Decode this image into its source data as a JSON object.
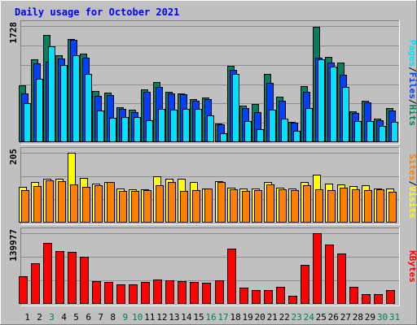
{
  "title": "Daily usage for October 2021",
  "colors": {
    "background": "#c0c0c0",
    "title": "#0000ff",
    "hits": "#00805c",
    "files": "#0040ff",
    "pages": "#00e0ff",
    "visits": "#ffff00",
    "sites": "#ff8000",
    "kbytes": "#ff0000",
    "weekend_label": "#00805c",
    "weekday_label": "#000000"
  },
  "chart_data": [
    {
      "type": "bar",
      "title": "Daily usage for October 2021",
      "max_label": "1728",
      "ylim": [
        0,
        1728
      ],
      "legend": [
        {
          "label": "Pages",
          "color": "#00e0ff"
        },
        {
          "label": "/",
          "color": "#000000"
        },
        {
          "label": "Files",
          "color": "#0040ff"
        },
        {
          "label": "/",
          "color": "#000000"
        },
        {
          "label": "Hits",
          "color": "#00805c"
        }
      ],
      "categories": [
        "1",
        "2",
        "3",
        "4",
        "5",
        "6",
        "7",
        "8",
        "9",
        "10",
        "11",
        "12",
        "13",
        "14",
        "15",
        "16",
        "17",
        "18",
        "19",
        "20",
        "21",
        "22",
        "23",
        "24",
        "25",
        "26",
        "27",
        "28",
        "29",
        "30",
        "31"
      ],
      "series": [
        {
          "name": "Hits",
          "color": "#00805c",
          "values": [
            840,
            1230,
            1600,
            1290,
            1540,
            1320,
            760,
            740,
            520,
            480,
            780,
            900,
            750,
            730,
            640,
            660,
            280,
            1130,
            540,
            570,
            1020,
            680,
            300,
            830,
            1720,
            1270,
            1190,
            460,
            620,
            350,
            510
          ]
        },
        {
          "name": "Files",
          "color": "#0040ff",
          "values": [
            720,
            1170,
            1200,
            1240,
            1520,
            1260,
            690,
            700,
            500,
            450,
            750,
            820,
            720,
            710,
            620,
            640,
            270,
            1080,
            510,
            450,
            880,
            620,
            290,
            750,
            1260,
            1180,
            1000,
            440,
            590,
            330,
            470
          ]
        },
        {
          "name": "Pages",
          "color": "#00e0ff",
          "values": [
            580,
            940,
            1420,
            1150,
            1290,
            1020,
            470,
            360,
            370,
            380,
            330,
            500,
            480,
            490,
            490,
            400,
            130,
            1020,
            320,
            190,
            480,
            350,
            170,
            510,
            1230,
            1120,
            820,
            310,
            320,
            240,
            300
          ]
        }
      ]
    },
    {
      "type": "bar",
      "max_label": "205",
      "ylim": [
        0,
        205
      ],
      "legend": [
        {
          "label": "Sites",
          "color": "#ff8000"
        },
        {
          "label": "/",
          "color": "#000000"
        },
        {
          "label": "Visits",
          "color": "#ffff00"
        }
      ],
      "categories": [
        "1",
        "2",
        "3",
        "4",
        "5",
        "6",
        "7",
        "8",
        "9",
        "10",
        "11",
        "12",
        "13",
        "14",
        "15",
        "16",
        "17",
        "18",
        "19",
        "20",
        "21",
        "22",
        "23",
        "24",
        "25",
        "26",
        "27",
        "28",
        "29",
        "30",
        "31"
      ],
      "series": [
        {
          "name": "Visits",
          "color": "#ffff00",
          "values": [
            105,
            118,
            128,
            128,
            205,
            130,
            115,
            118,
            100,
            98,
            98,
            135,
            128,
            128,
            120,
            100,
            122,
            103,
            100,
            100,
            118,
            103,
            100,
            118,
            140,
            115,
            112,
            108,
            110,
            100,
            100
          ]
        },
        {
          "name": "Sites",
          "color": "#ff8000",
          "values": [
            95,
            108,
            125,
            122,
            112,
            105,
            110,
            118,
            92,
            93,
            95,
            110,
            120,
            92,
            95,
            100,
            120,
            98,
            93,
            95,
            112,
            98,
            95,
            110,
            98,
            95,
            102,
            98,
            95,
            98,
            90
          ]
        }
      ]
    },
    {
      "type": "bar",
      "max_label": "139977",
      "ylim": [
        0,
        139977
      ],
      "legend": [
        {
          "label": "KBytes",
          "color": "#ff0000"
        }
      ],
      "categories": [
        "1",
        "2",
        "3",
        "4",
        "5",
        "6",
        "7",
        "8",
        "9",
        "10",
        "11",
        "12",
        "13",
        "14",
        "15",
        "16",
        "17",
        "18",
        "19",
        "20",
        "21",
        "22",
        "23",
        "24",
        "25",
        "26",
        "27",
        "28",
        "29",
        "30",
        "31"
      ],
      "series": [
        {
          "name": "KBytes",
          "color": "#ff0000",
          "values": [
            55000,
            80000,
            121000,
            104000,
            103000,
            93000,
            45000,
            43000,
            38000,
            38000,
            44000,
            48000,
            46000,
            45000,
            44000,
            42000,
            46000,
            109000,
            32000,
            28000,
            28000,
            33000,
            16000,
            78000,
            139977,
            118000,
            100000,
            33000,
            20000,
            20000,
            28000
          ]
        }
      ]
    }
  ],
  "days": [
    {
      "label": "1",
      "weekend": false
    },
    {
      "label": "2",
      "weekend": false
    },
    {
      "label": "3",
      "weekend": true
    },
    {
      "label": "4",
      "weekend": false
    },
    {
      "label": "5",
      "weekend": false
    },
    {
      "label": "6",
      "weekend": false
    },
    {
      "label": "7",
      "weekend": false
    },
    {
      "label": "8",
      "weekend": false
    },
    {
      "label": "9",
      "weekend": true
    },
    {
      "label": "10",
      "weekend": true
    },
    {
      "label": "11",
      "weekend": false
    },
    {
      "label": "12",
      "weekend": false
    },
    {
      "label": "13",
      "weekend": false
    },
    {
      "label": "14",
      "weekend": false
    },
    {
      "label": "15",
      "weekend": false
    },
    {
      "label": "16",
      "weekend": true
    },
    {
      "label": "17",
      "weekend": true
    },
    {
      "label": "18",
      "weekend": false
    },
    {
      "label": "19",
      "weekend": false
    },
    {
      "label": "20",
      "weekend": false
    },
    {
      "label": "21",
      "weekend": false
    },
    {
      "label": "22",
      "weekend": false
    },
    {
      "label": "23",
      "weekend": true
    },
    {
      "label": "24",
      "weekend": true
    },
    {
      "label": "25",
      "weekend": false
    },
    {
      "label": "26",
      "weekend": false
    },
    {
      "label": "27",
      "weekend": false
    },
    {
      "label": "28",
      "weekend": false
    },
    {
      "label": "29",
      "weekend": false
    },
    {
      "label": "30",
      "weekend": true
    },
    {
      "label": "31",
      "weekend": true
    }
  ]
}
